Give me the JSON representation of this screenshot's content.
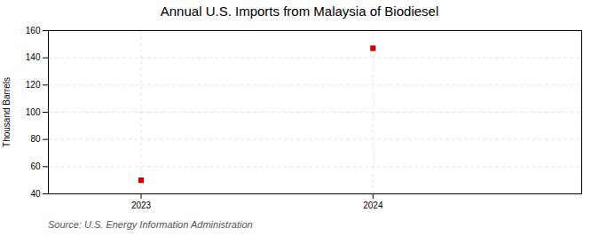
{
  "chart_data": {
    "type": "scatter",
    "title": "Annual U.S. Imports from Malaysia of Biodiesel",
    "ylabel": "Thousand Barrels",
    "source": "Source: U.S. Energy Information Administration",
    "x": [
      2023,
      2024
    ],
    "values": [
      50,
      147
    ],
    "color": "#cc0000",
    "marker": "square",
    "xlim": [
      2022.6,
      2024.9
    ],
    "xticks": [
      2023,
      2024
    ],
    "ylim": [
      40,
      160
    ],
    "yticks": [
      40,
      60,
      80,
      100,
      120,
      140,
      160
    ],
    "grid": true
  }
}
